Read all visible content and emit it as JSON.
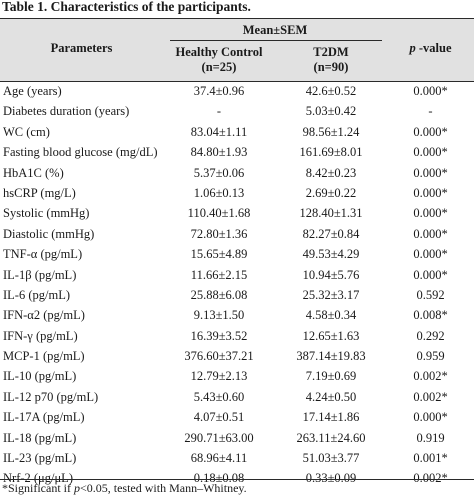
{
  "caption": "Table 1. Characteristics of the participants.",
  "header": {
    "parameters": "Parameters",
    "mean_sem": "Mean±SEM",
    "healthy_control": "Healthy Control",
    "healthy_control_n": "(n=25)",
    "t2dm": "T2DM",
    "t2dm_n": "(n=90)",
    "p_value_italic": "p",
    "p_value_rest": " -value"
  },
  "rows": [
    {
      "param": "Age (years)",
      "hc": "37.4±0.96",
      "t2dm": "42.6±0.52",
      "p": "0.000*"
    },
    {
      "param": "Diabetes duration (years)",
      "hc": "-",
      "t2dm": "5.03±0.42",
      "p": "-"
    },
    {
      "param": "WC (cm)",
      "hc": "83.04±1.11",
      "t2dm": "98.56±1.24",
      "p": "0.000*"
    },
    {
      "param": "Fasting blood glucose (mg/dL)",
      "hc": "84.80±1.93",
      "t2dm": "161.69±8.01",
      "p": "0.000*"
    },
    {
      "param": "HbA1C (%)",
      "hc": "5.37±0.06",
      "t2dm": "8.42±0.23",
      "p": "0.000*"
    },
    {
      "param": "hsCRP (mg/L)",
      "hc": "1.06±0.13",
      "t2dm": "2.69±0.22",
      "p": "0.000*"
    },
    {
      "param": "Systolic (mmHg)",
      "hc": "110.40±1.68",
      "t2dm": "128.40±1.31",
      "p": "0.000*"
    },
    {
      "param": "Diastolic (mmHg)",
      "hc": "72.80±1.36",
      "t2dm": "82.27±0.84",
      "p": "0.000*"
    },
    {
      "param": "TNF-α (pg/mL)",
      "hc": "15.65±4.89",
      "t2dm": "49.53±4.29",
      "p": "0.000*"
    },
    {
      "param": "IL-1β (pg/mL)",
      "hc": "11.66±2.15",
      "t2dm": "10.94±5.76",
      "p": "0.000*"
    },
    {
      "param": "IL-6 (pg/mL)",
      "hc": "25.88±6.08",
      "t2dm": "25.32±3.17",
      "p": "0.592"
    },
    {
      "param": "IFN-α2 (pg/mL)",
      "hc": "9.13±1.50",
      "t2dm": "4.58±0.34",
      "p": "0.008*"
    },
    {
      "param": "IFN-γ (pg/mL)",
      "hc": "16.39±3.52",
      "t2dm": "12.65±1.63",
      "p": "0.292"
    },
    {
      "param": "MCP-1 (pg/mL)",
      "hc": "376.60±37.21",
      "t2dm": "387.14±19.83",
      "p": "0.959"
    },
    {
      "param": "IL-10 (pg/mL)",
      "hc": "12.79±2.13",
      "t2dm": "7.19±0.69",
      "p": "0.002*"
    },
    {
      "param": "IL-12 p70 (pg/mL)",
      "hc": "5.43±0.60",
      "t2dm": "4.24±0.50",
      "p": "0.002*"
    },
    {
      "param": "IL-17A (pg/mL)",
      "hc": "4.07±0.51",
      "t2dm": "17.14±1.86",
      "p": "0.000*"
    },
    {
      "param": "IL-18 (pg/mL)",
      "hc": "290.71±63.00",
      "t2dm": "263.11±24.60",
      "p": "0.919"
    },
    {
      "param": "IL-23 (pg/mL)",
      "hc": "68.96±4.11",
      "t2dm": "51.03±3.77",
      "p": "0.001*"
    },
    {
      "param": "Nrf-2 (μg/μL)",
      "hc": "0.18±0.08",
      "t2dm": "0.33±0.09",
      "p": "0.002*"
    }
  ],
  "footnote": {
    "prefix": "*Significant if ",
    "p_italic": "p",
    "suffix": "<0.05, tested with Mann–Whitney."
  }
}
